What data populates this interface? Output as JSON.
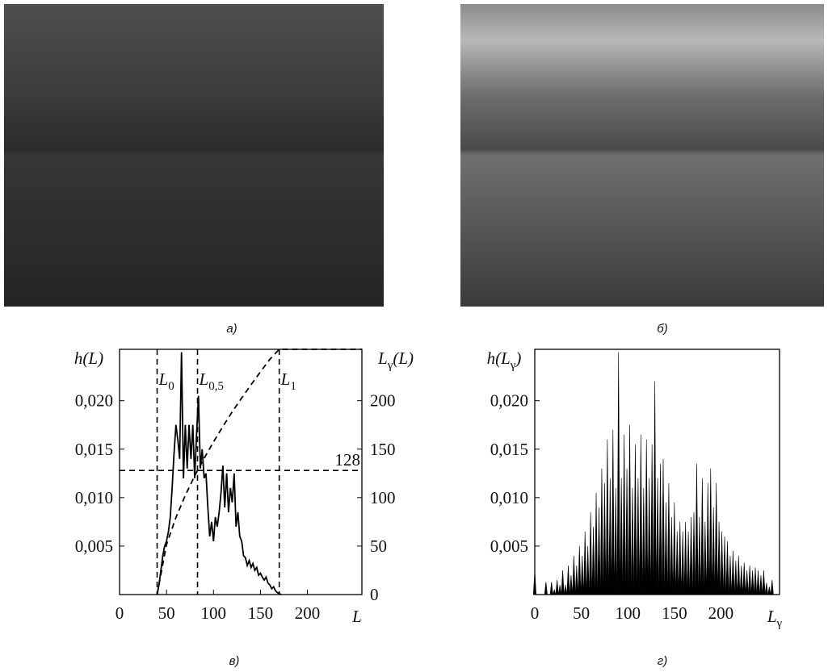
{
  "captions": [
    "а)",
    "б)",
    "в)",
    "г)"
  ],
  "chart_data": [
    {
      "type": "line",
      "xlim": [
        0,
        258
      ],
      "ylim": [
        0,
        0.0253
      ],
      "y2lim": [
        0,
        253
      ],
      "xticks": [
        0,
        50,
        100,
        150,
        200
      ],
      "yticks": [
        {
          "value": 0.005,
          "label": "0,005"
        },
        {
          "value": 0.01,
          "label": "0,010"
        },
        {
          "value": 0.015,
          "label": "0,015"
        },
        {
          "value": 0.02,
          "label": "0,020"
        }
      ],
      "y2ticks": [
        0,
        50,
        100,
        150,
        200
      ],
      "ylabel": {
        "main": "h(L)"
      },
      "y2label": {
        "main": "L",
        "sub": "γ",
        "tail": "(L)"
      },
      "xlabel": {
        "main": "L"
      },
      "vlines": [
        {
          "x": 40,
          "label": {
            "main": "L",
            "sub": "0"
          }
        },
        {
          "x": 83,
          "label": {
            "main": "L",
            "sub": "0,5"
          }
        },
        {
          "x": 170,
          "label": {
            "main": "L",
            "sub": "1"
          }
        }
      ],
      "hline": {
        "value": 128
      },
      "series": [
        {
          "color": "#000000",
          "x": [
            40,
            42,
            44,
            46,
            48,
            50,
            52,
            54,
            56,
            58,
            60,
            62,
            64,
            66,
            68,
            70,
            72,
            74,
            76,
            78,
            80,
            82,
            84,
            86,
            88,
            90,
            92,
            94,
            96,
            98,
            100,
            102,
            104,
            106,
            108,
            110,
            112,
            114,
            116,
            118,
            120,
            122,
            124,
            126,
            128,
            130,
            132,
            134,
            136,
            138,
            140,
            142,
            144,
            146,
            148,
            150,
            152,
            154,
            156,
            158,
            160,
            162,
            164,
            166,
            168,
            170,
            172
          ],
          "values": [
            0,
            0.001,
            0.0025,
            0.004,
            0.005,
            0.0055,
            0.0065,
            0.008,
            0.011,
            0.0145,
            0.0175,
            0.016,
            0.014,
            0.025,
            0.012,
            0.0175,
            0.013,
            0.0175,
            0.014,
            0.0175,
            0.012,
            0.0165,
            0.0205,
            0.013,
            0.015,
            0.012,
            0.0125,
            0.009,
            0.006,
            0.0075,
            0.0055,
            0.008,
            0.007,
            0.0085,
            0.0105,
            0.0133,
            0.009,
            0.0125,
            0.0085,
            0.011,
            0.0095,
            0.0125,
            0.007,
            0.0085,
            0.006,
            0.0055,
            0.004,
            0.0038,
            0.003,
            0.0035,
            0.0028,
            0.0032,
            0.0025,
            0.0028,
            0.002,
            0.0022,
            0.0018,
            0.0015,
            0.0018,
            0.0012,
            0.001,
            0.0006,
            0.0008,
            0.0004,
            0.0002,
            0.0001,
            0
          ]
        },
        {
          "color": "#000000",
          "axis": "y2",
          "dashed": true,
          "x": [
            40,
            50,
            60,
            70,
            80,
            83,
            90,
            100,
            110,
            120,
            130,
            140,
            150,
            160,
            170,
            258
          ],
          "values": [
            0,
            51.6,
            79.5,
            102.3,
            122.4,
            128,
            140.6,
            157.5,
            173.4,
            188.5,
            202.8,
            216.5,
            229.8,
            242.6,
            253,
            253
          ]
        }
      ]
    },
    {
      "type": "stem",
      "xlim": [
        0,
        263
      ],
      "ylim": [
        0,
        0.0253
      ],
      "xticks": [
        0,
        50,
        100,
        150,
        200
      ],
      "yticks": [
        {
          "value": 0.005,
          "label": "0,005"
        },
        {
          "value": 0.01,
          "label": "0,010"
        },
        {
          "value": 0.015,
          "label": "0,015"
        },
        {
          "value": 0.02,
          "label": "0,020"
        }
      ],
      "ylabel": {
        "main": "h(L",
        "sub": "γ",
        "tail": ")"
      },
      "xlabel": {
        "main": "L",
        "sub": "γ"
      },
      "series": [
        {
          "color": "#000000",
          "x": [
            0,
            3,
            6,
            9,
            12,
            15,
            18,
            21,
            24,
            27,
            30,
            33,
            36,
            39,
            42,
            45,
            48,
            51,
            54,
            57,
            60,
            63,
            66,
            69,
            72,
            75,
            78,
            81,
            84,
            87,
            90,
            93,
            96,
            99,
            102,
            105,
            108,
            111,
            114,
            117,
            120,
            123,
            126,
            129,
            132,
            135,
            138,
            141,
            144,
            147,
            150,
            153,
            156,
            159,
            162,
            165,
            168,
            171,
            174,
            177,
            180,
            183,
            186,
            189,
            192,
            195,
            198,
            201,
            204,
            207,
            210,
            213,
            216,
            219,
            222,
            225,
            228,
            231,
            234,
            237,
            240,
            243,
            246,
            249,
            252,
            255
          ],
          "values": [
            0.0025,
            0,
            0,
            0,
            0.0013,
            0,
            0.0013,
            0.0005,
            0.0015,
            0.001,
            0.0025,
            0.001,
            0.003,
            0.002,
            0.004,
            0.003,
            0.005,
            0.004,
            0.0065,
            0.005,
            0.0085,
            0.007,
            0.0105,
            0.009,
            0.013,
            0.0115,
            0.016,
            0.012,
            0.017,
            0.011,
            0.025,
            0.012,
            0.0165,
            0.013,
            0.0175,
            0.011,
            0.0155,
            0.012,
            0.0165,
            0.011,
            0.016,
            0.012,
            0.0155,
            0.022,
            0.012,
            0.0135,
            0.014,
            0.0095,
            0.0115,
            0.008,
            0.0095,
            0.0065,
            0.0075,
            0.0065,
            0.0075,
            0.0065,
            0.008,
            0.0085,
            0.0135,
            0.008,
            0.012,
            0.0075,
            0.0115,
            0.013,
            0.009,
            0.0115,
            0.0075,
            0.0065,
            0.006,
            0.0055,
            0.004,
            0.0045,
            0.0035,
            0.004,
            0.003,
            0.0033,
            0.0025,
            0.003,
            0.0025,
            0.0028,
            0.0025,
            0.002,
            0.0025,
            0.0012,
            0.0008,
            0.0015
          ]
        }
      ]
    }
  ]
}
